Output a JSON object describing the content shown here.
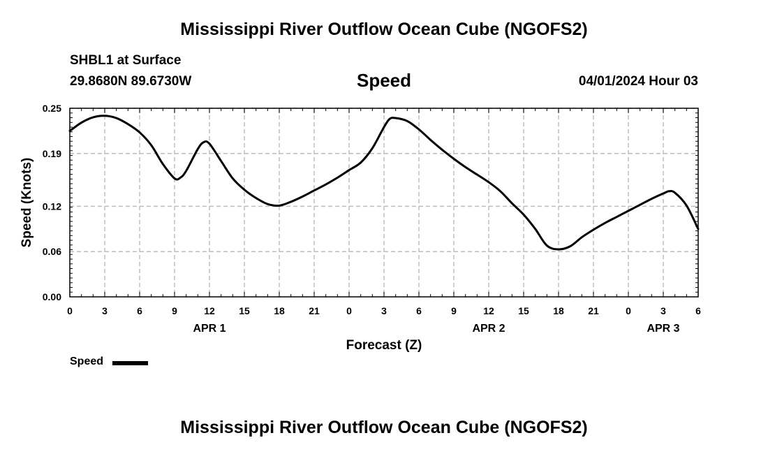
{
  "header": {
    "title": "Mississippi River Outflow Ocean Cube (NGOFS2)",
    "station": "SHBL1 at Surface",
    "coordinates": "29.8680N  89.6730W",
    "timestamp": "04/01/2024 Hour 03"
  },
  "footer": {
    "title": "Mississippi River Outflow Ocean Cube (NGOFS2)"
  },
  "legend": {
    "label": "Speed",
    "color": "#000000"
  },
  "chart_data": {
    "type": "line",
    "title": "Speed",
    "xlabel": "Forecast (Z)",
    "ylabel": "Speed (Knots)",
    "xlim": [
      0,
      54
    ],
    "ylim": [
      0,
      0.25
    ],
    "x_unit": "hours from APR 1 00Z",
    "y_ticks": [
      0.0,
      0.06,
      0.12,
      0.19,
      0.25
    ],
    "y_tick_labels": [
      "0.00",
      "0.06",
      "0.12",
      "0.19",
      "0.25"
    ],
    "x_ticks": [
      0,
      3,
      6,
      9,
      12,
      15,
      18,
      21,
      24,
      27,
      30,
      33,
      36,
      39,
      42,
      45,
      48,
      51,
      54
    ],
    "x_tick_labels": [
      "0",
      "3",
      "6",
      "9",
      "12",
      "15",
      "18",
      "21",
      "0",
      "3",
      "6",
      "9",
      "12",
      "15",
      "18",
      "21",
      "0",
      "3",
      "6"
    ],
    "date_labels": [
      {
        "x": 12,
        "label": "APR 1"
      },
      {
        "x": 36,
        "label": "APR 2"
      },
      {
        "x": 51,
        "label": "APR 3"
      }
    ],
    "grid": true,
    "series": [
      {
        "name": "Speed",
        "color": "#000000",
        "x": [
          0,
          1,
          2,
          3,
          4,
          5,
          6,
          7,
          8,
          9,
          9.5,
          10,
          11,
          11.5,
          12,
          13,
          14,
          15,
          16,
          17,
          18,
          19,
          20,
          21,
          22,
          23,
          24,
          25,
          26,
          27,
          27.5,
          28,
          29,
          30,
          31,
          32,
          33,
          34,
          35,
          36,
          37,
          38,
          39,
          40,
          41,
          42,
          43,
          44,
          45,
          46,
          47,
          48,
          49,
          50,
          51,
          51.5,
          52,
          53,
          54
        ],
        "y": [
          0.22,
          0.231,
          0.238,
          0.24,
          0.237,
          0.229,
          0.218,
          0.201,
          0.176,
          0.157,
          0.158,
          0.167,
          0.196,
          0.205,
          0.203,
          0.18,
          0.157,
          0.142,
          0.131,
          0.123,
          0.121,
          0.126,
          0.133,
          0.141,
          0.149,
          0.158,
          0.168,
          0.178,
          0.197,
          0.225,
          0.236,
          0.237,
          0.233,
          0.222,
          0.208,
          0.195,
          0.183,
          0.172,
          0.162,
          0.152,
          0.14,
          0.124,
          0.109,
          0.09,
          0.068,
          0.063,
          0.067,
          0.079,
          0.089,
          0.098,
          0.106,
          0.114,
          0.122,
          0.13,
          0.137,
          0.14,
          0.138,
          0.121,
          0.09
        ]
      }
    ]
  }
}
